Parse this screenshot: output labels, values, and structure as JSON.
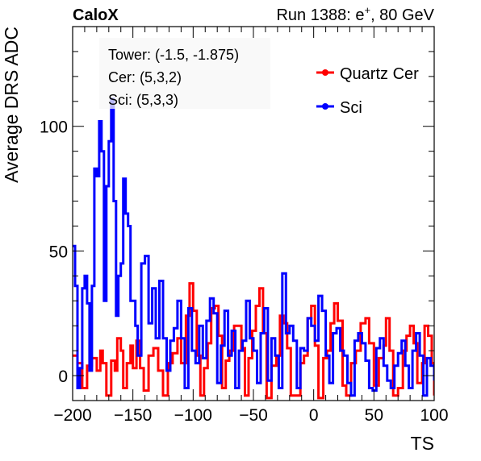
{
  "header": {
    "experiment": "CaloX",
    "run_info_prefix": "Run 1388: e",
    "run_info_sup": "+",
    "run_info_suffix": ", 80 GeV"
  },
  "annotations": [
    "Tower: (-1.5, -1.875)",
    "Cer: (5,3,2)",
    "Sci: (5,3,3)"
  ],
  "chart_data": {
    "type": "line",
    "style": "histogram-step",
    "title": "",
    "xlabel": "TS",
    "ylabel": "Average DRS ADC",
    "xlim": [
      -200,
      100
    ],
    "ylim": [
      -10,
      140
    ],
    "xticks": [
      -200,
      -150,
      -100,
      -50,
      0,
      50,
      100
    ],
    "yticks": [
      0,
      50,
      100
    ],
    "grid": false,
    "legend_position": "top-right",
    "series": [
      {
        "name": "Quartz Cer",
        "color": "#ff0000",
        "points": [
          [
            -200,
            8
          ],
          [
            -196,
            5
          ],
          [
            -192,
            -5
          ],
          [
            -188,
            4
          ],
          [
            -184,
            7
          ],
          [
            -180,
            2
          ],
          [
            -177,
            10
          ],
          [
            -175,
            5
          ],
          [
            -172,
            -8
          ],
          [
            -168,
            6
          ],
          [
            -165,
            2
          ],
          [
            -163,
            15
          ],
          [
            -160,
            10
          ],
          [
            -158,
            -5
          ],
          [
            -155,
            5
          ],
          [
            -152,
            12
          ],
          [
            -150,
            3
          ],
          [
            -147,
            14
          ],
          [
            -144,
            3
          ],
          [
            -141,
            -6
          ],
          [
            -137,
            8
          ],
          [
            -133,
            11
          ],
          [
            -129,
            2
          ],
          [
            -125,
            -8
          ],
          [
            -121,
            5
          ],
          [
            -117,
            9
          ],
          [
            -113,
            15
          ],
          [
            -110,
            5
          ],
          [
            -106,
            24
          ],
          [
            -103,
            37
          ],
          [
            -100,
            26
          ],
          [
            -97,
            8
          ],
          [
            -94,
            -8
          ],
          [
            -91,
            3
          ],
          [
            -88,
            13
          ],
          [
            -85,
            27
          ],
          [
            -82,
            28
          ],
          [
            -79,
            16
          ],
          [
            -76,
            -5
          ],
          [
            -73,
            6
          ],
          [
            -70,
            10
          ],
          [
            -66,
            20
          ],
          [
            -63,
            20
          ],
          [
            -60,
            11
          ],
          [
            -57,
            -8
          ],
          [
            -54,
            7
          ],
          [
            -51,
            18
          ],
          [
            -48,
            28
          ],
          [
            -45,
            35
          ],
          [
            -42,
            17
          ],
          [
            -39,
            -9
          ],
          [
            -35,
            4
          ],
          [
            -31,
            8
          ],
          [
            -28,
            24
          ],
          [
            -25,
            21
          ],
          [
            -22,
            11
          ],
          [
            -19,
            -8
          ],
          [
            -15,
            -8
          ],
          [
            -11,
            5
          ],
          [
            -8,
            8
          ],
          [
            -5,
            23
          ],
          [
            -2,
            28
          ],
          [
            1,
            12
          ],
          [
            4,
            -9
          ],
          [
            8,
            7
          ],
          [
            11,
            10
          ],
          [
            14,
            21
          ],
          [
            17,
            29
          ],
          [
            20,
            22
          ],
          [
            24,
            -4
          ],
          [
            27,
            -8
          ],
          [
            31,
            5
          ],
          [
            35,
            10
          ],
          [
            39,
            21
          ],
          [
            43,
            23
          ],
          [
            46,
            13
          ],
          [
            50,
            -4
          ],
          [
            54,
            7
          ],
          [
            58,
            12
          ],
          [
            60,
            23
          ],
          [
            63,
            10
          ],
          [
            66,
            -8
          ],
          [
            70,
            -5
          ],
          [
            74,
            10
          ],
          [
            77,
            16
          ],
          [
            80,
            20
          ],
          [
            83,
            13
          ],
          [
            86,
            -3
          ],
          [
            90,
            5
          ],
          [
            92,
            20
          ],
          [
            95,
            16
          ],
          [
            98,
            5
          ],
          [
            100,
            -8
          ]
        ]
      },
      {
        "name": "Sci",
        "color": "#0000ff",
        "points": [
          [
            -200,
            52
          ],
          [
            -198,
            36
          ],
          [
            -196,
            -5
          ],
          [
            -194,
            3
          ],
          [
            -192,
            35
          ],
          [
            -190,
            40
          ],
          [
            -188,
            29
          ],
          [
            -186,
            2
          ],
          [
            -184,
            36
          ],
          [
            -182,
            83
          ],
          [
            -180,
            80
          ],
          [
            -178,
            102
          ],
          [
            -176,
            90
          ],
          [
            -174,
            30
          ],
          [
            -172,
            76
          ],
          [
            -170,
            94
          ],
          [
            -168,
            111
          ],
          [
            -166,
            70
          ],
          [
            -164,
            24
          ],
          [
            -162,
            40
          ],
          [
            -160,
            45
          ],
          [
            -158,
            79
          ],
          [
            -156,
            65
          ],
          [
            -154,
            60
          ],
          [
            -152,
            30
          ],
          [
            -150,
            30
          ],
          [
            -148,
            20
          ],
          [
            -146,
            8
          ],
          [
            -143,
            45
          ],
          [
            -140,
            48
          ],
          [
            -137,
            21
          ],
          [
            -134,
            35
          ],
          [
            -131,
            15
          ],
          [
            -128,
            38
          ],
          [
            -125,
            15
          ],
          [
            -122,
            2
          ],
          [
            -119,
            14
          ],
          [
            -116,
            19
          ],
          [
            -113,
            30
          ],
          [
            -110,
            15
          ],
          [
            -107,
            -5
          ],
          [
            -104,
            27
          ],
          [
            -101,
            10
          ],
          [
            -98,
            5
          ],
          [
            -95,
            20
          ],
          [
            -92,
            7
          ],
          [
            -89,
            22
          ],
          [
            -86,
            31
          ],
          [
            -83,
            25
          ],
          [
            -80,
            -3
          ],
          [
            -77,
            12
          ],
          [
            -74,
            26
          ],
          [
            -71,
            8
          ],
          [
            -68,
            18
          ],
          [
            -65,
            -5
          ],
          [
            -62,
            10
          ],
          [
            -59,
            14
          ],
          [
            -56,
            30
          ],
          [
            -53,
            15
          ],
          [
            -50,
            10
          ],
          [
            -47,
            -3
          ],
          [
            -44,
            17
          ],
          [
            -41,
            27
          ],
          [
            -38,
            -2
          ],
          [
            -35,
            15
          ],
          [
            -32,
            8
          ],
          [
            -29,
            -5
          ],
          [
            -26,
            41
          ],
          [
            -23,
            17
          ],
          [
            -20,
            20
          ],
          [
            -17,
            14
          ],
          [
            -14,
            -5
          ],
          [
            -11,
            11
          ],
          [
            -8,
            10
          ],
          [
            -5,
            23
          ],
          [
            -2,
            20
          ],
          [
            1,
            14
          ],
          [
            4,
            32
          ],
          [
            7,
            26
          ],
          [
            10,
            8
          ],
          [
            13,
            -3
          ],
          [
            16,
            17
          ],
          [
            19,
            19
          ],
          [
            22,
            10
          ],
          [
            25,
            8
          ],
          [
            28,
            -3
          ],
          [
            31,
            -8
          ],
          [
            34,
            14
          ],
          [
            37,
            17
          ],
          [
            40,
            13
          ],
          [
            43,
            6
          ],
          [
            46,
            -5
          ],
          [
            49,
            -6
          ],
          [
            52,
            11
          ],
          [
            55,
            15
          ],
          [
            58,
            4
          ],
          [
            61,
            -2
          ],
          [
            64,
            -5
          ],
          [
            67,
            4
          ],
          [
            70,
            9
          ],
          [
            73,
            14
          ],
          [
            76,
            4
          ],
          [
            79,
            -5
          ],
          [
            82,
            10
          ],
          [
            85,
            17
          ],
          [
            88,
            8
          ],
          [
            91,
            -8
          ],
          [
            94,
            7
          ],
          [
            97,
            4
          ],
          [
            100,
            -2
          ]
        ]
      }
    ]
  }
}
